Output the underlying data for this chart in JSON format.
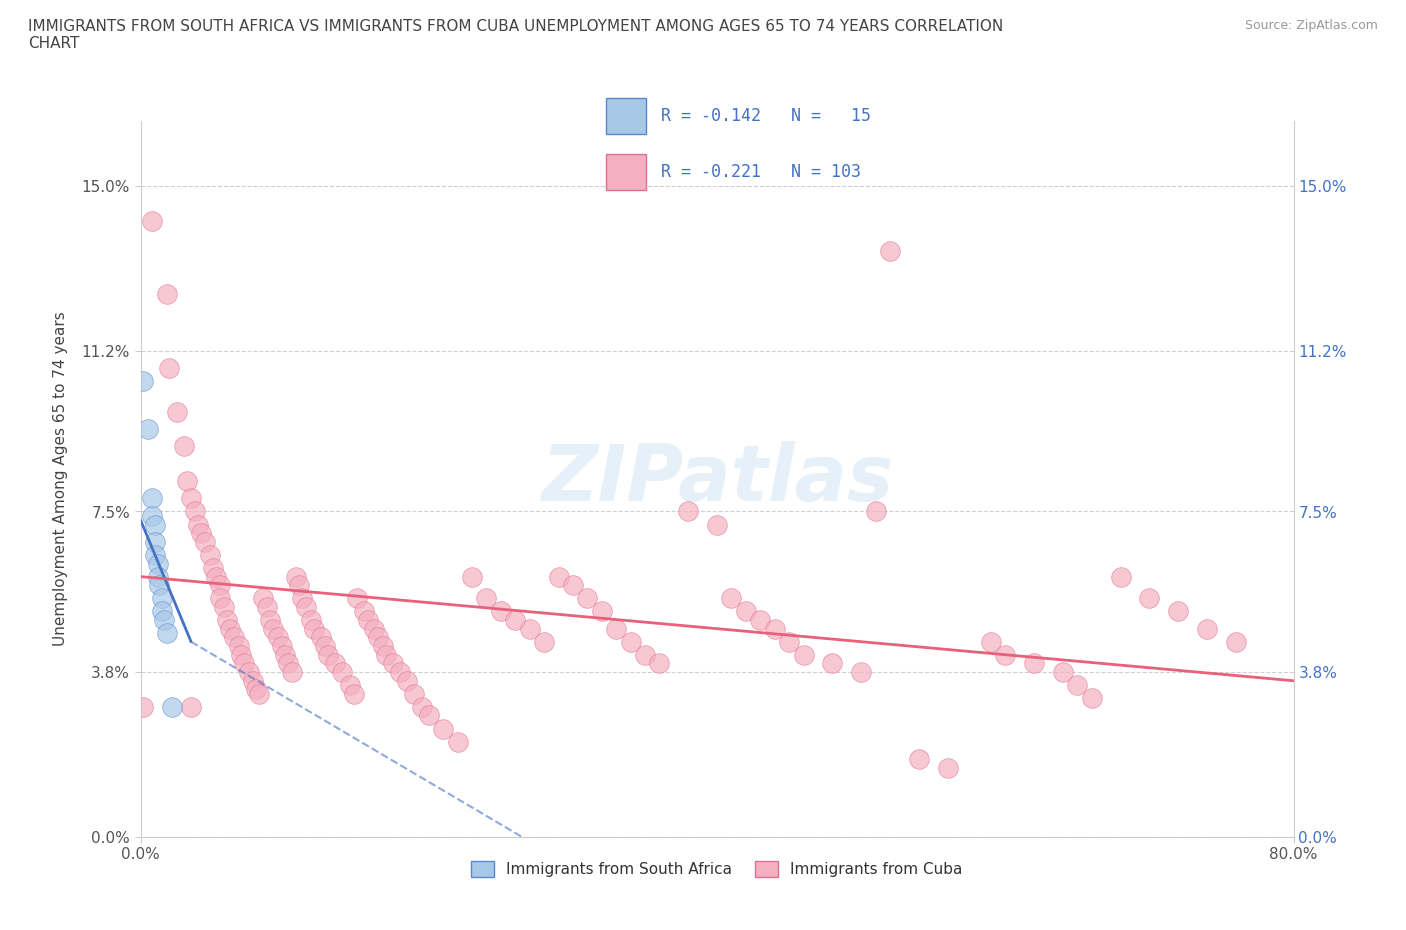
{
  "title": "IMMIGRANTS FROM SOUTH AFRICA VS IMMIGRANTS FROM CUBA UNEMPLOYMENT AMONG AGES 65 TO 74 YEARS CORRELATION\nCHART",
  "source": "Source: ZipAtlas.com",
  "ylabel": "Unemployment Among Ages 65 to 74 years",
  "xmin": 0.0,
  "xmax": 0.8,
  "ymin": 0.0,
  "ymax": 0.165,
  "yticks": [
    0.0,
    0.038,
    0.075,
    0.112,
    0.15
  ],
  "ytick_labels": [
    "0.0%",
    "3.8%",
    "7.5%",
    "11.2%",
    "15.0%"
  ],
  "xticks": [
    0.0,
    0.8
  ],
  "xtick_labels": [
    "0.0%",
    "80.0%"
  ],
  "color_sa": "#a8c8e8",
  "color_cuba": "#f4b0c0",
  "trendline_sa_color": "#4472c4",
  "trendline_cuba_color": "#e8607a",
  "sa_trendline": [
    [
      0.0,
      0.073
    ],
    [
      0.035,
      0.045
    ]
  ],
  "sa_trendline_extended": [
    [
      0.035,
      0.045
    ],
    [
      0.52,
      -0.05
    ]
  ],
  "cuba_trendline": [
    [
      0.0,
      0.06
    ],
    [
      0.8,
      0.036
    ]
  ],
  "sa_points": [
    [
      0.002,
      0.105
    ],
    [
      0.005,
      0.094
    ],
    [
      0.008,
      0.078
    ],
    [
      0.008,
      0.074
    ],
    [
      0.01,
      0.072
    ],
    [
      0.01,
      0.068
    ],
    [
      0.01,
      0.065
    ],
    [
      0.012,
      0.063
    ],
    [
      0.012,
      0.06
    ],
    [
      0.013,
      0.058
    ],
    [
      0.015,
      0.055
    ],
    [
      0.015,
      0.052
    ],
    [
      0.016,
      0.05
    ],
    [
      0.018,
      0.047
    ],
    [
      0.022,
      0.03
    ]
  ],
  "cuba_points": [
    [
      0.008,
      0.142
    ],
    [
      0.018,
      0.125
    ],
    [
      0.02,
      0.108
    ],
    [
      0.025,
      0.098
    ],
    [
      0.03,
      0.09
    ],
    [
      0.032,
      0.082
    ],
    [
      0.035,
      0.078
    ],
    [
      0.038,
      0.075
    ],
    [
      0.04,
      0.072
    ],
    [
      0.042,
      0.07
    ],
    [
      0.045,
      0.068
    ],
    [
      0.048,
      0.065
    ],
    [
      0.05,
      0.062
    ],
    [
      0.052,
      0.06
    ],
    [
      0.055,
      0.058
    ],
    [
      0.055,
      0.055
    ],
    [
      0.058,
      0.053
    ],
    [
      0.06,
      0.05
    ],
    [
      0.062,
      0.048
    ],
    [
      0.065,
      0.046
    ],
    [
      0.068,
      0.044
    ],
    [
      0.07,
      0.042
    ],
    [
      0.072,
      0.04
    ],
    [
      0.075,
      0.038
    ],
    [
      0.078,
      0.036
    ],
    [
      0.08,
      0.034
    ],
    [
      0.082,
      0.033
    ],
    [
      0.085,
      0.055
    ],
    [
      0.088,
      0.053
    ],
    [
      0.09,
      0.05
    ],
    [
      0.092,
      0.048
    ],
    [
      0.095,
      0.046
    ],
    [
      0.098,
      0.044
    ],
    [
      0.1,
      0.042
    ],
    [
      0.102,
      0.04
    ],
    [
      0.105,
      0.038
    ],
    [
      0.108,
      0.06
    ],
    [
      0.11,
      0.058
    ],
    [
      0.112,
      0.055
    ],
    [
      0.115,
      0.053
    ],
    [
      0.118,
      0.05
    ],
    [
      0.12,
      0.048
    ],
    [
      0.125,
      0.046
    ],
    [
      0.128,
      0.044
    ],
    [
      0.13,
      0.042
    ],
    [
      0.135,
      0.04
    ],
    [
      0.14,
      0.038
    ],
    [
      0.145,
      0.035
    ],
    [
      0.148,
      0.033
    ],
    [
      0.15,
      0.055
    ],
    [
      0.155,
      0.052
    ],
    [
      0.158,
      0.05
    ],
    [
      0.162,
      0.048
    ],
    [
      0.165,
      0.046
    ],
    [
      0.168,
      0.044
    ],
    [
      0.17,
      0.042
    ],
    [
      0.175,
      0.04
    ],
    [
      0.18,
      0.038
    ],
    [
      0.185,
      0.036
    ],
    [
      0.19,
      0.033
    ],
    [
      0.195,
      0.03
    ],
    [
      0.2,
      0.028
    ],
    [
      0.21,
      0.025
    ],
    [
      0.22,
      0.022
    ],
    [
      0.23,
      0.06
    ],
    [
      0.24,
      0.055
    ],
    [
      0.25,
      0.052
    ],
    [
      0.26,
      0.05
    ],
    [
      0.27,
      0.048
    ],
    [
      0.28,
      0.045
    ],
    [
      0.29,
      0.06
    ],
    [
      0.3,
      0.058
    ],
    [
      0.31,
      0.055
    ],
    [
      0.32,
      0.052
    ],
    [
      0.33,
      0.048
    ],
    [
      0.34,
      0.045
    ],
    [
      0.35,
      0.042
    ],
    [
      0.36,
      0.04
    ],
    [
      0.38,
      0.075
    ],
    [
      0.4,
      0.072
    ],
    [
      0.41,
      0.055
    ],
    [
      0.42,
      0.052
    ],
    [
      0.43,
      0.05
    ],
    [
      0.44,
      0.048
    ],
    [
      0.45,
      0.045
    ],
    [
      0.46,
      0.042
    ],
    [
      0.48,
      0.04
    ],
    [
      0.5,
      0.038
    ],
    [
      0.51,
      0.075
    ],
    [
      0.52,
      0.135
    ],
    [
      0.54,
      0.018
    ],
    [
      0.56,
      0.016
    ],
    [
      0.59,
      0.045
    ],
    [
      0.6,
      0.042
    ],
    [
      0.62,
      0.04
    ],
    [
      0.64,
      0.038
    ],
    [
      0.65,
      0.035
    ],
    [
      0.66,
      0.032
    ],
    [
      0.68,
      0.06
    ],
    [
      0.7,
      0.055
    ],
    [
      0.72,
      0.052
    ],
    [
      0.74,
      0.048
    ],
    [
      0.76,
      0.045
    ],
    [
      0.035,
      0.03
    ],
    [
      0.002,
      0.03
    ]
  ]
}
